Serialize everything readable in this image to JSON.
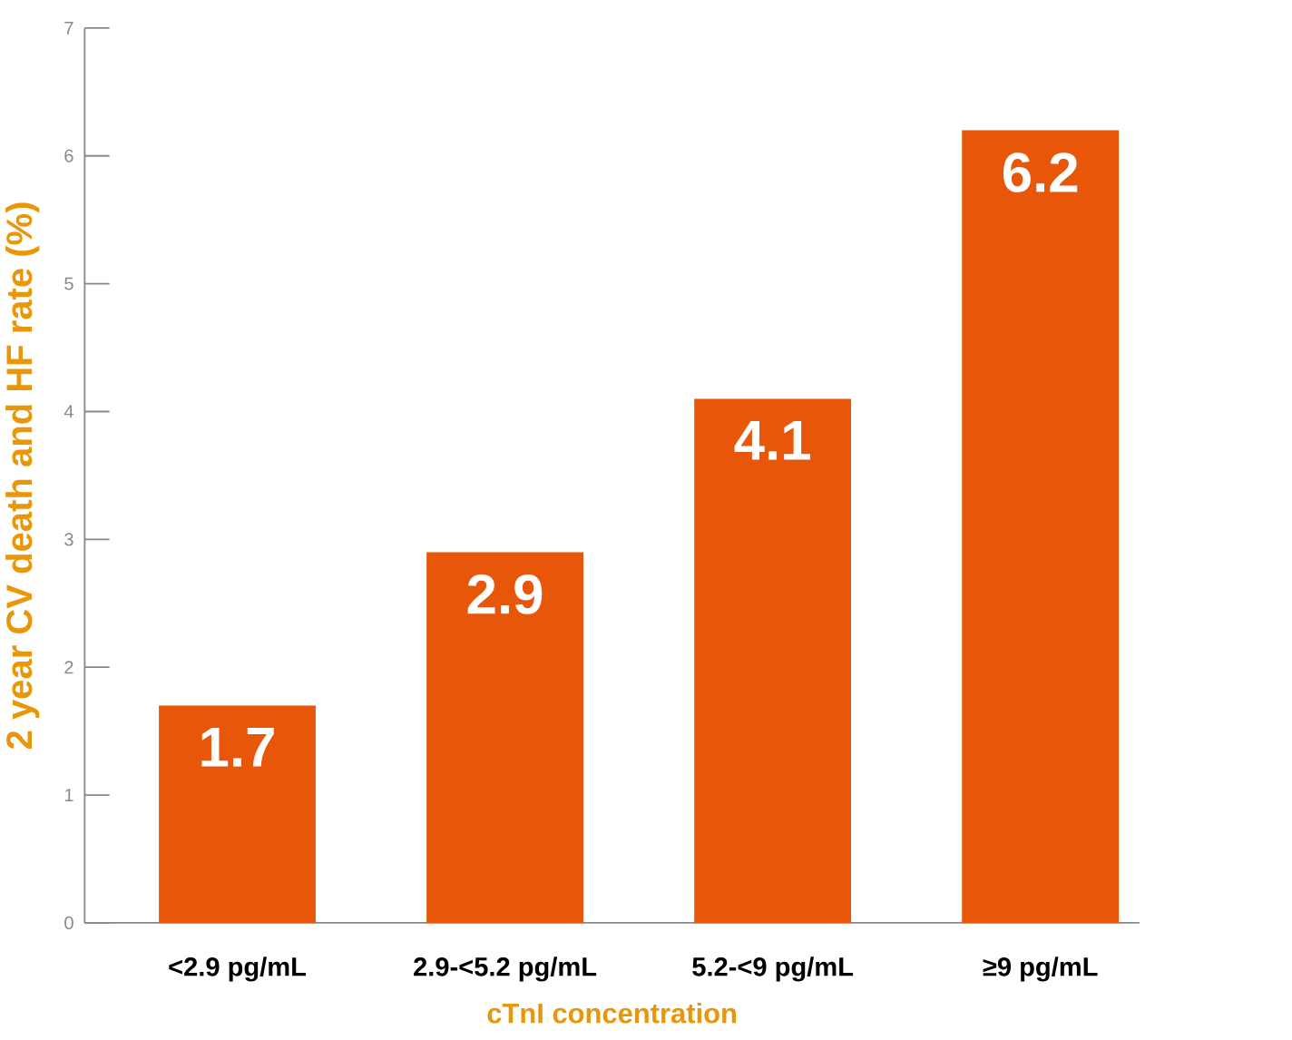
{
  "chart_data": {
    "type": "bar",
    "xlabel": "cTnI concentration",
    "ylabel": "2 year CV death and HF rate (%)",
    "categories": [
      "<2.9 pg/mL",
      "2.9-<5.2 pg/mL",
      "5.2-<9 pg/mL",
      "≥9 pg/mL"
    ],
    "values": [
      1.7,
      2.9,
      4.1,
      6.2
    ],
    "color": "#e8560a",
    "ylim": [
      0,
      7
    ],
    "yticks": [
      0,
      1,
      2,
      3,
      4,
      5,
      6,
      7
    ],
    "data_labels": true
  }
}
